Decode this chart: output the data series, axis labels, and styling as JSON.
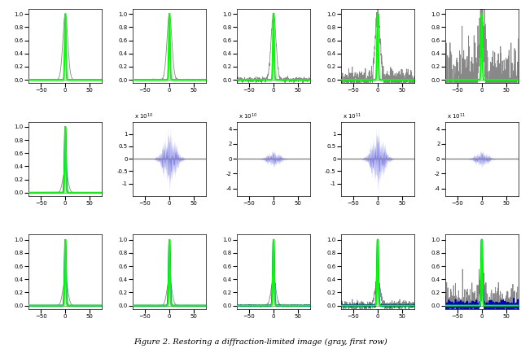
{
  "nrows": 3,
  "ncols": 5,
  "figsize": [
    6.4,
    4.29
  ],
  "dpi": 100,
  "caption": "Figure 2. Restoring a diffraction-limited image (gray, first row)",
  "colors": {
    "green": "#00FF00",
    "blue": "#0000CD",
    "gray": "#888888",
    "light_gray": "#AAAAAA"
  },
  "row1_noise": [
    0,
    0.005,
    0.018,
    0.07,
    0.28
  ],
  "row3_noise": [
    0,
    0.003,
    0.012,
    0.055,
    0.22
  ],
  "row2_configs": [
    {
      "scale": null,
      "ylim": 1.2
    },
    {
      "scale": 10000000000.0,
      "exp": 10,
      "ylim": 15000000000.0,
      "yticks": [
        -10000000000.0,
        -5000000000.0,
        0,
        5000000000.0,
        10000000000.0
      ]
    },
    {
      "scale": 10000000000.0,
      "exp": 10,
      "ylim": 50000000000.0,
      "yticks": [
        -40000000000.0,
        -20000000000.0,
        0,
        20000000000.0,
        40000000000.0
      ]
    },
    {
      "scale": 100000000000.0,
      "exp": 11,
      "ylim": 150000000000.0,
      "yticks": [
        -100000000000.0,
        -50000000000.0,
        0,
        50000000000.0,
        100000000000.0
      ]
    },
    {
      "scale": 100000000000.0,
      "exp": 11,
      "ylim": 500000000000.0,
      "yticks": [
        -400000000000.0,
        -200000000000.0,
        0,
        200000000000.0,
        400000000000.0
      ]
    }
  ]
}
